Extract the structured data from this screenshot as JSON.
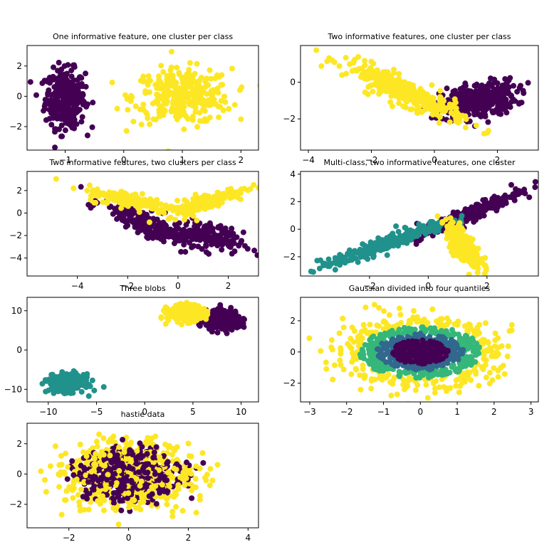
{
  "figure": {
    "background": "#ffffff"
  },
  "chart_data": [
    {
      "type": "scatter",
      "title": "One informative feature, one cluster per class",
      "xlim": [
        -1.65,
        2.3
      ],
      "ylim": [
        -3.55,
        3.35
      ],
      "xticks": [
        -1,
        0,
        1,
        2
      ],
      "yticks": [
        -2,
        0,
        2
      ],
      "clusters": [
        {
          "class": 0,
          "color": "#440154",
          "n": 320,
          "cx": -1.0,
          "cy": -0.15,
          "sx": 0.17,
          "sy": 0.95
        },
        {
          "class": 1,
          "color": "#fde725",
          "n": 330,
          "cx": 1.0,
          "cy": 0.0,
          "sx": 0.42,
          "sy": 0.9
        }
      ]
    },
    {
      "type": "scatter",
      "title": "Two informative features, one cluster per class",
      "xlim": [
        -4.25,
        3.3
      ],
      "ylim": [
        -3.7,
        2.0
      ],
      "xticks": [
        -4,
        -2,
        0,
        2
      ],
      "yticks": [
        -2,
        0
      ],
      "clusters": [
        {
          "class": 0,
          "color": "#440154",
          "n": 330,
          "cx": 1.4,
          "cy": -1.0,
          "sx": 0.6,
          "sy": 0.5,
          "rho": 0.3
        },
        {
          "class": 1,
          "color": "#fde725",
          "n": 330,
          "cx": -0.9,
          "cy": -0.55,
          "sx": 0.95,
          "sy": 0.8,
          "rho": -0.9
        }
      ]
    },
    {
      "type": "scatter",
      "title": "Two informative features, two clusters per class",
      "xlim": [
        -6.0,
        3.2
      ],
      "ylim": [
        -5.6,
        3.7
      ],
      "xticks": [
        -4,
        -2,
        0,
        2
      ],
      "yticks": [
        -4,
        -2,
        0,
        2
      ],
      "clusters": [
        {
          "class": 0,
          "color": "#440154",
          "n": 200,
          "cx": -1.3,
          "cy": -0.9,
          "sx": 0.85,
          "sy": 1.0,
          "rho": -0.85
        },
        {
          "class": 0,
          "color": "#440154",
          "n": 150,
          "cx": 1.2,
          "cy": -2.0,
          "sx": 0.7,
          "sy": 0.7,
          "rho": -0.6
        },
        {
          "class": 1,
          "color": "#fde725",
          "n": 160,
          "cx": -1.8,
          "cy": 1.1,
          "sx": 0.9,
          "sy": 0.5,
          "rho": -0.7
        },
        {
          "class": 1,
          "color": "#fde725",
          "n": 160,
          "cx": 1.1,
          "cy": 1.0,
          "sx": 0.8,
          "sy": 0.6,
          "rho": 0.8
        }
      ]
    },
    {
      "type": "scatter",
      "title": "Multi-class, two informative features, one cluster",
      "xlim": [
        -4.35,
        3.75
      ],
      "ylim": [
        -3.4,
        4.2
      ],
      "xticks": [
        -2,
        0,
        2
      ],
      "yticks": [
        -2,
        0,
        2,
        4
      ],
      "clusters": [
        {
          "class": 0,
          "color": "#440154",
          "n": 240,
          "cx": 1.4,
          "cy": 1.1,
          "sx": 0.9,
          "sy": 0.9,
          "rho": 0.95
        },
        {
          "class": 1,
          "color": "#21918c",
          "n": 240,
          "cx": -1.5,
          "cy": -1.1,
          "sx": 1.1,
          "sy": 0.9,
          "rho": 0.95
        },
        {
          "class": 2,
          "color": "#fde725",
          "n": 240,
          "cx": 1.2,
          "cy": -1.2,
          "sx": 0.3,
          "sy": 0.8,
          "rho": -0.7
        }
      ]
    },
    {
      "type": "scatter",
      "title": "Three blobs",
      "xlim": [
        -12.2,
        11.8
      ],
      "ylim": [
        -13.2,
        13.4
      ],
      "xticks": [
        -10,
        -5,
        0,
        5,
        10
      ],
      "yticks": [
        -10,
        0,
        10
      ],
      "clusters": [
        {
          "class": 0,
          "color": "#440154",
          "n": 300,
          "cx": 8.2,
          "cy": 7.5,
          "sx": 0.9,
          "sy": 1.2
        },
        {
          "class": 1,
          "color": "#21918c",
          "n": 300,
          "cx": -8.1,
          "cy": -8.4,
          "sx": 0.9,
          "sy": 1.1
        },
        {
          "class": 2,
          "color": "#fde725",
          "n": 300,
          "cx": 4.2,
          "cy": 9.3,
          "sx": 0.9,
          "sy": 1.0
        }
      ]
    },
    {
      "type": "scatter",
      "title": "Gaussian divided into four quantiles",
      "xlim": [
        -3.25,
        3.2
      ],
      "ylim": [
        -3.2,
        3.5
      ],
      "xticks": [
        -3,
        -2,
        -1,
        0,
        1,
        2,
        3
      ],
      "yticks": [
        -2,
        0,
        2
      ],
      "quantile_colors": [
        "#440154",
        "#31688e",
        "#35b779",
        "#fde725"
      ],
      "n": 1000,
      "sx": 1.0,
      "sy": 1.0
    },
    {
      "type": "scatter",
      "title": "hastie data",
      "xlim": [
        -3.4,
        4.35
      ],
      "ylim": [
        -3.55,
        3.35
      ],
      "xticks": [
        -2,
        0,
        2,
        4
      ],
      "yticks": [
        -2,
        0,
        2
      ],
      "threshold": 9.34,
      "class_colors": [
        "#440154",
        "#fde725"
      ],
      "n": 1000,
      "sx": 1.0,
      "sy": 1.0
    }
  ]
}
